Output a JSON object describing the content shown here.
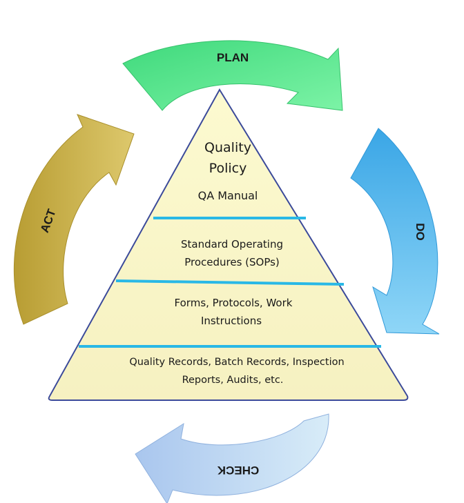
{
  "cycle": {
    "plan": "PLAN",
    "do": "DO",
    "check": "CHECK",
    "act": "ACT"
  },
  "pyramid": {
    "tier1": {
      "line1": "Quality",
      "line2": "Policy",
      "line3": "QA Manual"
    },
    "tier2": {
      "line1": "Standard Operating",
      "line2": "Procedures (SOPs)"
    },
    "tier3": {
      "line1": "Forms, Protocols,  Work",
      "line2": "Instructions"
    },
    "tier4": {
      "line1": "Quality Records, Batch Records, Inspection",
      "line2": "Reports, Audits, etc."
    }
  },
  "colors": {
    "plan": "#4fe28a",
    "do": "#52b4ec",
    "check": "#b9d4f2",
    "act": "#c8b04a",
    "pyramid_fill": "#fdfbd2",
    "pyramid_edge": "#3b4a9a",
    "divider": "#29b8e6"
  }
}
